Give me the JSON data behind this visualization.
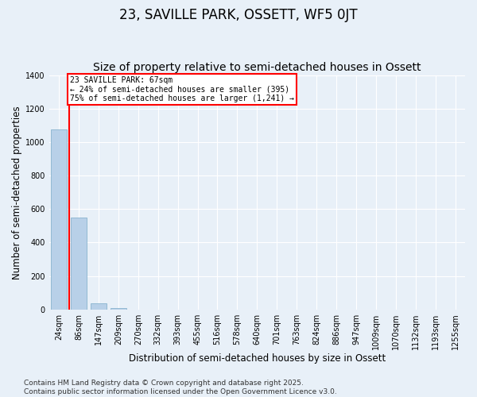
{
  "title": "23, SAVILLE PARK, OSSETT, WF5 0JT",
  "subtitle": "Size of property relative to semi-detached houses in Ossett",
  "xlabel": "Distribution of semi-detached houses by size in Ossett",
  "ylabel": "Number of semi-detached properties",
  "categories": [
    "24sqm",
    "86sqm",
    "147sqm",
    "209sqm",
    "270sqm",
    "332sqm",
    "393sqm",
    "455sqm",
    "516sqm",
    "578sqm",
    "640sqm",
    "701sqm",
    "763sqm",
    "824sqm",
    "886sqm",
    "947sqm",
    "1009sqm",
    "1070sqm",
    "1132sqm",
    "1193sqm",
    "1255sqm"
  ],
  "values": [
    1075,
    550,
    35,
    8,
    0,
    0,
    0,
    0,
    0,
    0,
    0,
    0,
    0,
    0,
    0,
    0,
    0,
    0,
    0,
    0,
    0
  ],
  "bar_color": "#b8d0e8",
  "bar_edge_color": "#7aaac8",
  "ylim": [
    0,
    1400
  ],
  "red_line_x": 0.5,
  "annotation_title": "23 SAVILLE PARK: 67sqm",
  "annotation_line1": "← 24% of semi-detached houses are smaller (395)",
  "annotation_line2": "75% of semi-detached houses are larger (1,241) →",
  "footer_line1": "Contains HM Land Registry data © Crown copyright and database right 2025.",
  "footer_line2": "Contains public sector information licensed under the Open Government Licence v3.0.",
  "bg_color": "#e8f0f8",
  "plot_bg_color": "#e8f0f8",
  "title_fontsize": 12,
  "subtitle_fontsize": 10,
  "axis_label_fontsize": 8.5,
  "tick_fontsize": 7,
  "footer_fontsize": 6.5,
  "yticks": [
    0,
    200,
    400,
    600,
    800,
    1000,
    1200,
    1400
  ]
}
